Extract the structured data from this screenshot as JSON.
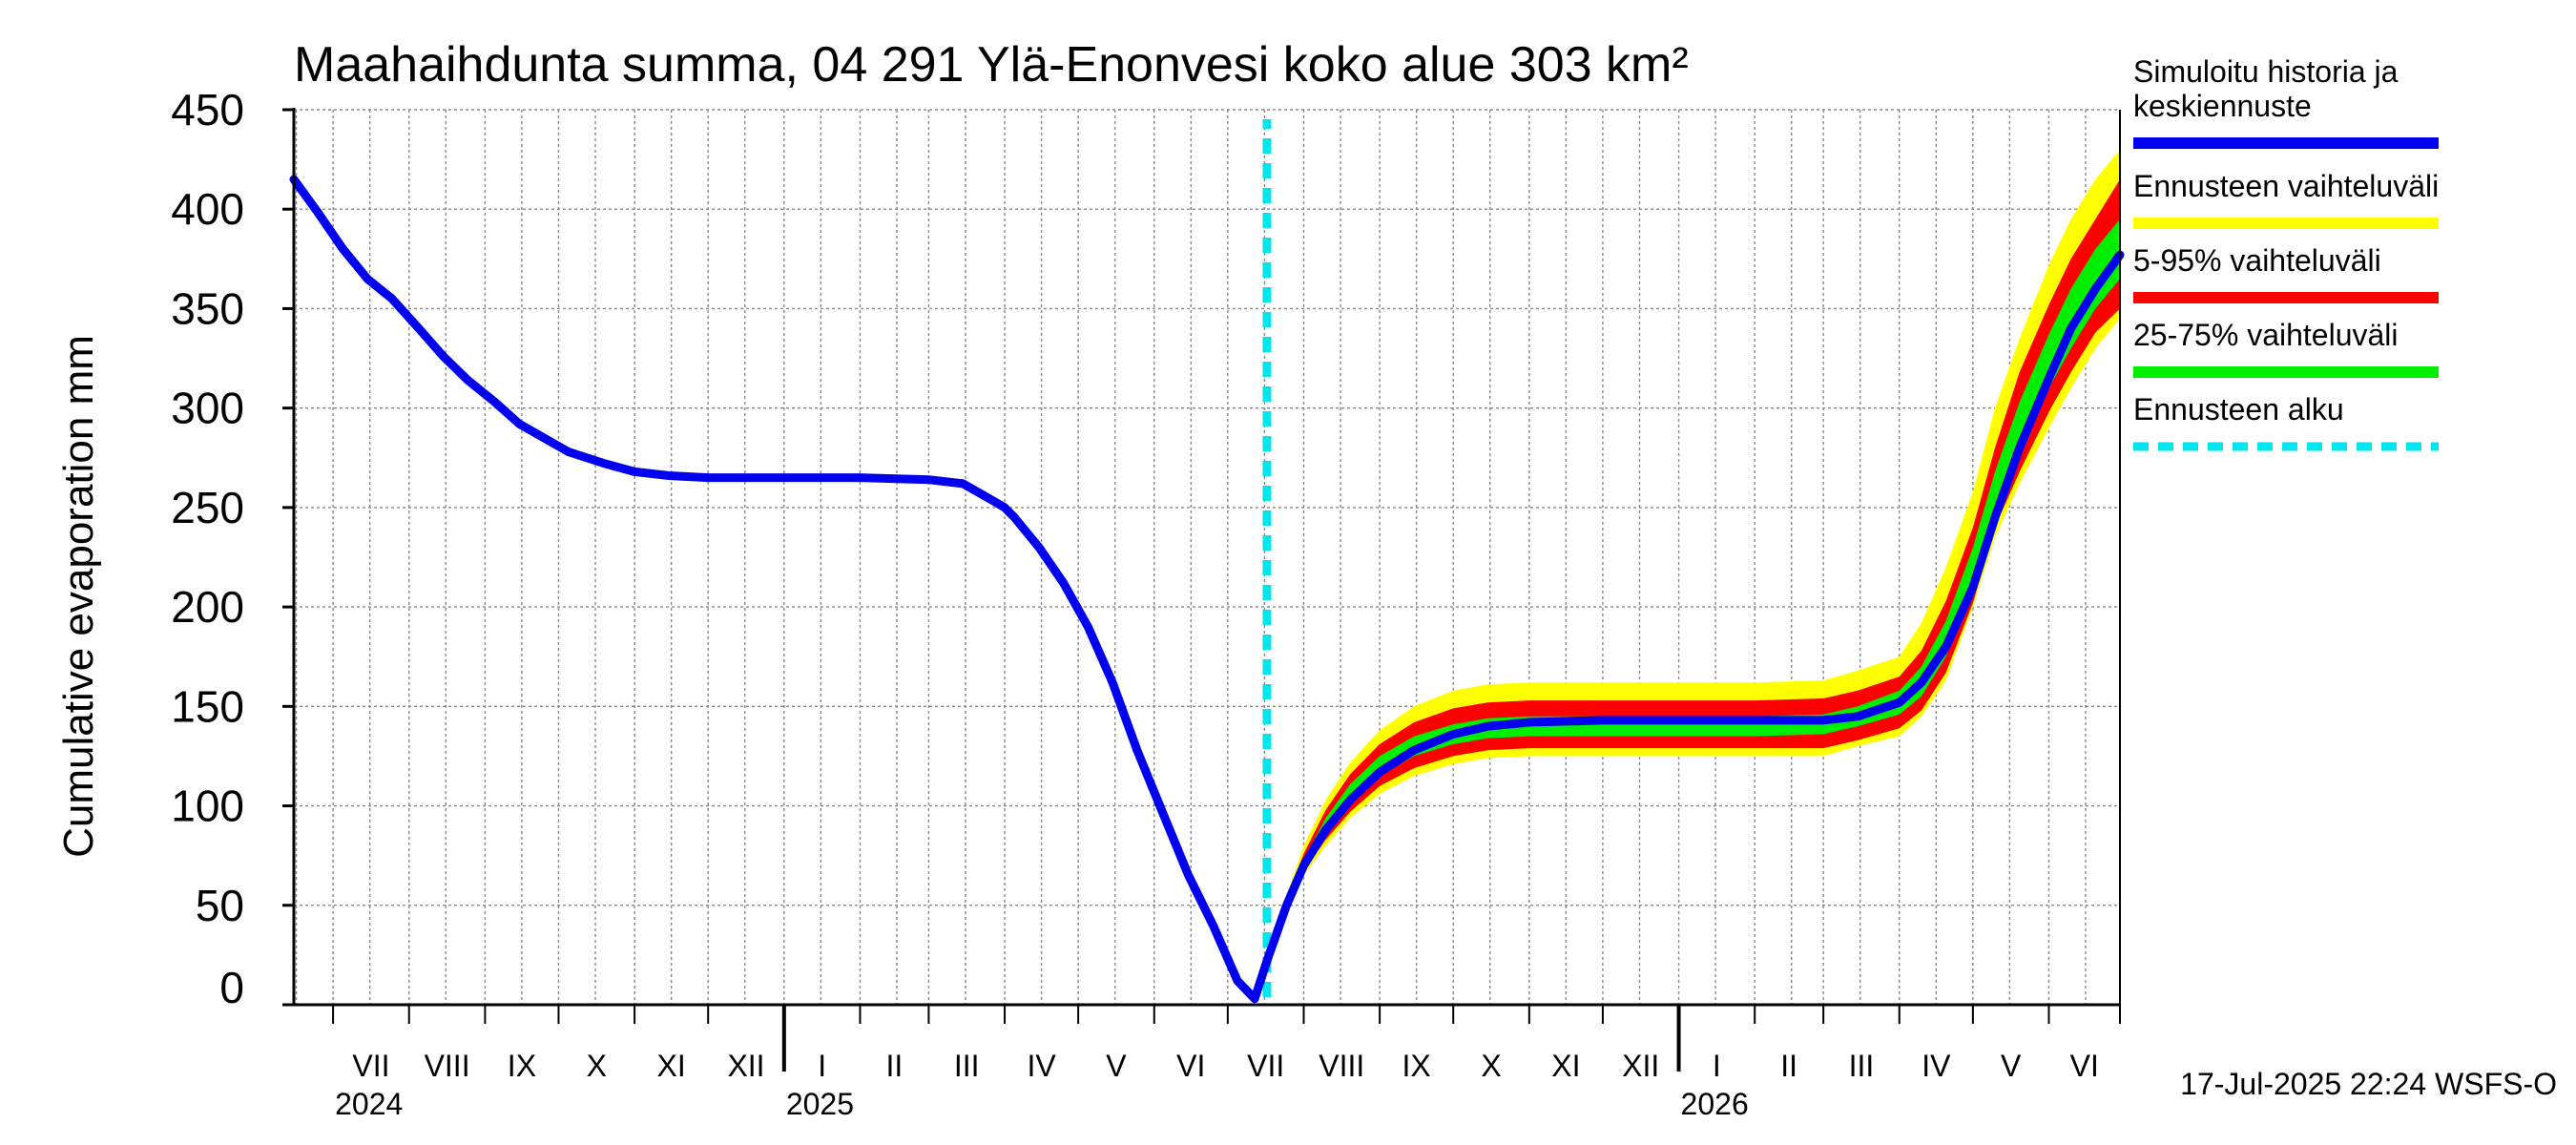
{
  "chart_data": {
    "type": "line",
    "title": "Maahaihdunta summa, 04 291 Ylä-Enonvesi koko alue 303 km²",
    "ylabel": "Cumulative evaporation   mm",
    "xlabel": "",
    "ylim": [
      0,
      450
    ],
    "yticks": [
      0,
      50,
      100,
      150,
      200,
      250,
      300,
      350,
      400,
      450
    ],
    "grid": true,
    "x_start": "2024-06-15",
    "x_end": "2026-06-30",
    "months": [
      {
        "label": "VII",
        "start": "2024-07-01"
      },
      {
        "label": "VIII",
        "start": "2024-08-01"
      },
      {
        "label": "IX",
        "start": "2024-09-01"
      },
      {
        "label": "X",
        "start": "2024-10-01"
      },
      {
        "label": "XI",
        "start": "2024-11-01"
      },
      {
        "label": "XII",
        "start": "2024-12-01"
      },
      {
        "label": "I",
        "start": "2025-01-01"
      },
      {
        "label": "II",
        "start": "2025-02-01"
      },
      {
        "label": "III",
        "start": "2025-03-01"
      },
      {
        "label": "IV",
        "start": "2025-04-01"
      },
      {
        "label": "V",
        "start": "2025-05-01"
      },
      {
        "label": "VI",
        "start": "2025-06-01"
      },
      {
        "label": "VII",
        "start": "2025-07-01"
      },
      {
        "label": "VIII",
        "start": "2025-08-01"
      },
      {
        "label": "IX",
        "start": "2025-09-01"
      },
      {
        "label": "X",
        "start": "2025-10-01"
      },
      {
        "label": "XI",
        "start": "2025-11-01"
      },
      {
        "label": "XII",
        "start": "2025-12-01"
      },
      {
        "label": "I",
        "start": "2026-01-01"
      },
      {
        "label": "II",
        "start": "2026-02-01"
      },
      {
        "label": "III",
        "start": "2026-03-01"
      },
      {
        "label": "IV",
        "start": "2026-04-01"
      },
      {
        "label": "V",
        "start": "2026-05-01"
      },
      {
        "label": "VI",
        "start": "2026-06-01"
      }
    ],
    "years": [
      {
        "label": "2024",
        "start": "2024-07-01"
      },
      {
        "label": "2025",
        "start": "2025-01-01"
      },
      {
        "label": "2026",
        "start": "2026-01-01"
      }
    ],
    "forecast_start": "2025-07-17",
    "forecast_dates": [
      "2025-07-17",
      "2025-07-25",
      "2025-08-01",
      "2025-08-10",
      "2025-08-20",
      "2025-09-01",
      "2025-09-15",
      "2025-10-01",
      "2025-10-15",
      "2025-11-01",
      "2025-12-01",
      "2026-01-01",
      "2026-02-01",
      "2026-03-01",
      "2026-03-15",
      "2026-04-01",
      "2026-04-10",
      "2026-04-20",
      "2026-05-01",
      "2026-05-10",
      "2026-05-20",
      "2026-06-01",
      "2026-06-10",
      "2026-06-20",
      "2026-06-30"
    ],
    "series": [
      {
        "name": "Simuloitu historia ja keskiennuste",
        "color": "#0000ee",
        "x": [
          "2024-06-15",
          "2024-06-25",
          "2024-07-05",
          "2024-07-15",
          "2024-07-25",
          "2024-08-05",
          "2024-08-15",
          "2024-08-25",
          "2024-09-05",
          "2024-09-15",
          "2024-09-25",
          "2024-10-05",
          "2024-10-20",
          "2024-11-01",
          "2024-11-15",
          "2024-12-01",
          "2025-01-01",
          "2025-02-01",
          "2025-03-01",
          "2025-03-15",
          "2025-03-25",
          "2025-04-01",
          "2025-04-05",
          "2025-04-15",
          "2025-04-25",
          "2025-05-05",
          "2025-05-15",
          "2025-05-25",
          "2025-06-05",
          "2025-06-15",
          "2025-06-25",
          "2025-07-05",
          "2025-07-12",
          "2025-07-17",
          "2025-07-25",
          "2025-08-01",
          "2025-08-10",
          "2025-08-20",
          "2025-09-01",
          "2025-09-15",
          "2025-10-01",
          "2025-10-15",
          "2025-11-01",
          "2025-12-01",
          "2026-01-01",
          "2026-02-01",
          "2026-03-01",
          "2026-03-15",
          "2026-04-01",
          "2026-04-10",
          "2026-04-20",
          "2026-05-01",
          "2026-05-10",
          "2026-05-20",
          "2026-06-01",
          "2026-06-10",
          "2026-06-20",
          "2026-06-30"
        ],
        "values": [
          415,
          398,
          380,
          365,
          355,
          340,
          326,
          314,
          303,
          292,
          285,
          278,
          272,
          268,
          266,
          265,
          265,
          265,
          264,
          262,
          255,
          250,
          245,
          230,
          212,
          190,
          162,
          128,
          95,
          65,
          40,
          12,
          3,
          22,
          50,
          70,
          88,
          103,
          117,
          128,
          136,
          140,
          142,
          143,
          143,
          143,
          143,
          145,
          152,
          162,
          180,
          210,
          245,
          280,
          315,
          340,
          360,
          377
        ]
      }
    ],
    "bands": [
      {
        "name": "Ennusteen vaihteluväli",
        "color": "#ffff00",
        "upper": [
          25,
          55,
          80,
          103,
          122,
          138,
          150,
          158,
          161,
          162,
          162,
          162,
          162,
          163,
          168,
          175,
          192,
          220,
          258,
          300,
          335,
          372,
          395,
          415,
          430
        ],
        "lower": [
          20,
          46,
          65,
          80,
          94,
          106,
          115,
          121,
          124,
          125,
          125,
          125,
          125,
          125,
          130,
          135,
          145,
          163,
          200,
          235,
          262,
          290,
          310,
          330,
          345
        ]
      },
      {
        "name": "5-95% vaihteluväli",
        "color": "#ff0000",
        "upper": [
          24,
          53,
          76,
          98,
          116,
          131,
          142,
          149,
          152,
          153,
          153,
          153,
          153,
          154,
          158,
          165,
          178,
          203,
          240,
          280,
          318,
          352,
          375,
          395,
          415
        ],
        "lower": [
          21,
          47,
          67,
          83,
          97,
          110,
          119,
          125,
          128,
          129,
          129,
          129,
          129,
          129,
          133,
          139,
          148,
          167,
          202,
          240,
          268,
          298,
          318,
          338,
          350
        ]
      },
      {
        "name": "25-75% vaihteluväli",
        "color": "#00ee00",
        "upper": [
          23,
          51,
          73,
          94,
          111,
          125,
          135,
          141,
          144,
          145,
          145,
          145,
          145,
          146,
          150,
          158,
          170,
          193,
          230,
          268,
          303,
          337,
          360,
          380,
          395
        ],
        "lower": [
          21,
          49,
          69,
          87,
          102,
          115,
          125,
          131,
          134,
          135,
          135,
          135,
          135,
          136,
          140,
          146,
          155,
          175,
          212,
          250,
          280,
          310,
          330,
          350,
          365
        ]
      }
    ],
    "legend": {
      "position": "right",
      "items": [
        {
          "label_lines": [
            "Simuloitu historia ja",
            "keskiennuste"
          ],
          "color": "#0000ee",
          "style": "solid"
        },
        {
          "label_lines": [
            "Ennusteen vaihteluväli"
          ],
          "color": "#ffff00",
          "style": "solid"
        },
        {
          "label_lines": [
            "5-95% vaihteluväli"
          ],
          "color": "#ff0000",
          "style": "solid"
        },
        {
          "label_lines": [
            "25-75% vaihteluväli"
          ],
          "color": "#00ee00",
          "style": "solid"
        },
        {
          "label_lines": [
            "Ennusteen alku"
          ],
          "color": "#00e5ee",
          "style": "dashed"
        }
      ]
    },
    "footer": "17-Jul-2025 22:24 WSFS-O"
  }
}
